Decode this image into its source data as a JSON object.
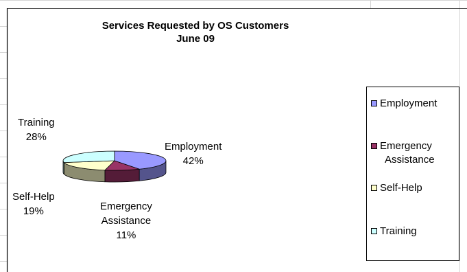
{
  "chart_data": {
    "type": "pie",
    "title": "Services Requested by OS Customers",
    "subtitle": "June 09",
    "categories": [
      "Employment",
      "Emergency Assistance",
      "Self-Help",
      "Training"
    ],
    "values": [
      42,
      11,
      19,
      28
    ],
    "labels": {
      "employment": {
        "name": "Employment",
        "pct": "42%"
      },
      "emergency": {
        "name_line1": "Emergency",
        "name_line2": "Assistance",
        "pct": "11%"
      },
      "selfhelp": {
        "name": "Self-Help",
        "pct": "19%"
      },
      "training": {
        "name": "Training",
        "pct": "28%"
      }
    },
    "legend": {
      "placement": "right",
      "items": [
        {
          "label": "Employment"
        },
        {
          "label_line1": "Emergency",
          "label_line2": "Assistance"
        },
        {
          "label": "Self-Help"
        },
        {
          "label": "Training"
        }
      ]
    },
    "colors": {
      "Employment": "#9999ff",
      "Emergency Assistance": "#993366",
      "Self-Help": "#ffffcc",
      "Training": "#ccffff"
    },
    "style": "3d-pie"
  }
}
